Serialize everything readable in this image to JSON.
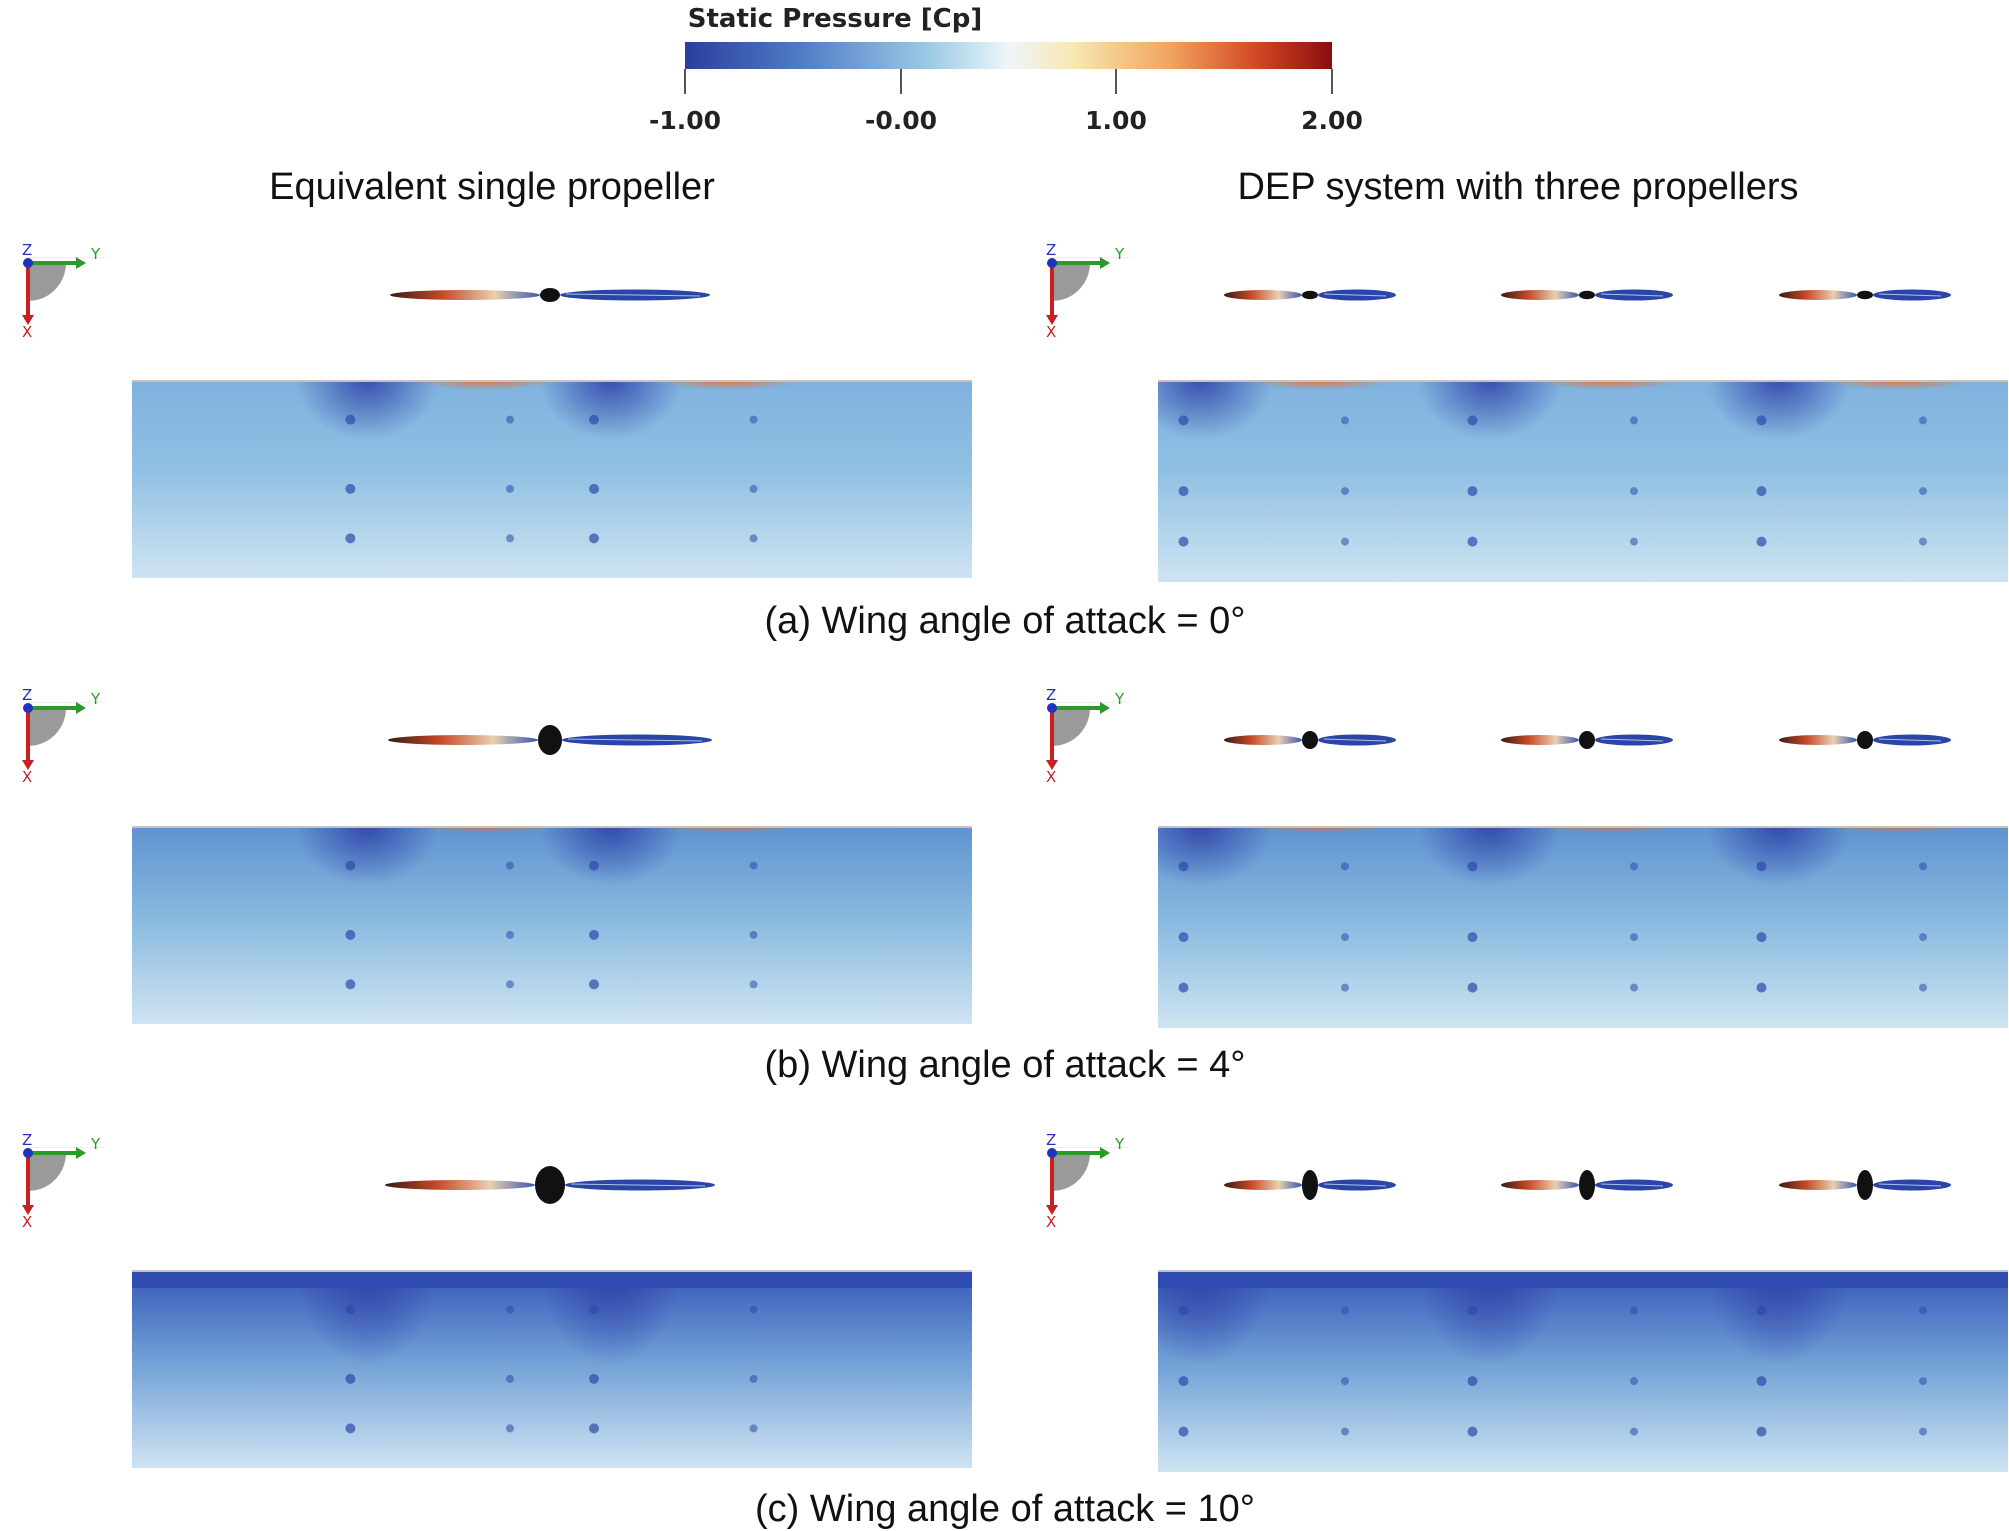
{
  "colorbar": {
    "title": "Static Pressure [Cp]",
    "ticks": [
      "-1.00",
      "-0.00",
      "1.00",
      "2.00"
    ],
    "colors": [
      "#2a3e9c",
      "#5b8ccd",
      "#b9dcef",
      "#f7fafb",
      "#f7dfa0",
      "#ee9255",
      "#c8321f",
      "#8a0d0d"
    ]
  },
  "columns": {
    "left_title": "Equivalent single propeller",
    "right_title": "DEP system with three propellers"
  },
  "rows": [
    {
      "caption": "(a) Wing angle of attack = 0°"
    },
    {
      "caption": "(b) Wing angle of attack = 4°"
    },
    {
      "caption": "(c) Wing angle of attack = 10°"
    }
  ],
  "axes_triad": {
    "z": "Z",
    "y": "Y",
    "x": "X"
  }
}
